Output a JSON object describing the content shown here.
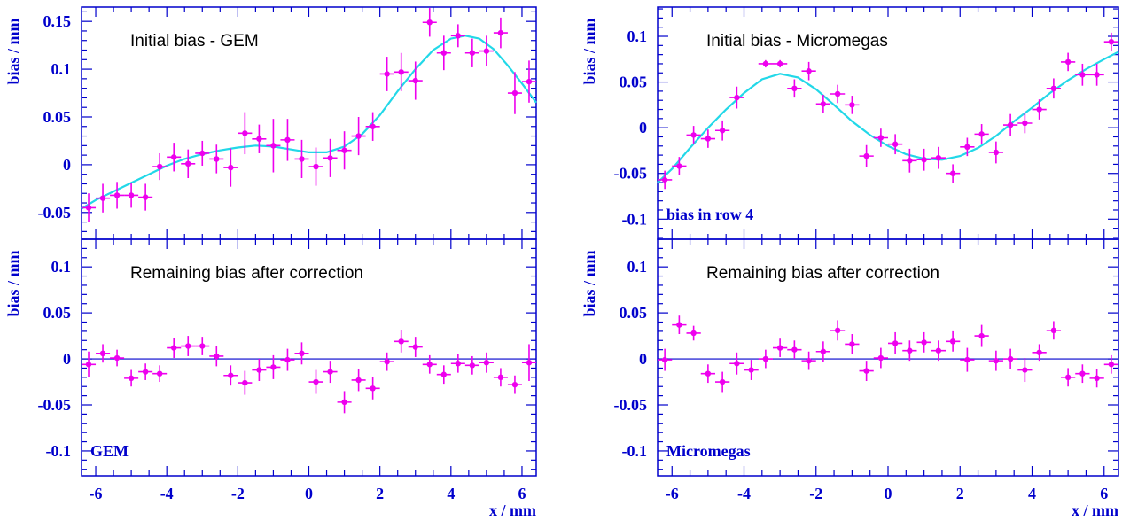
{
  "colors": {
    "axis": "#0000cc",
    "points": "#ee00ee",
    "fit": "#22d8e8",
    "note": "#000000"
  },
  "chart_data": [
    {
      "type": "scatter",
      "title": "Initial bias - GEM",
      "tag": "",
      "ylabel": "bias / mm",
      "xlabel": "",
      "xlim": [
        -6.4,
        6.4
      ],
      "ylim": [
        -0.078,
        0.165
      ],
      "yticks": [
        -0.05,
        0,
        0.05,
        0.1,
        0.15
      ],
      "ytick_labels": [
        "-0.05",
        "0",
        "0.05",
        "0.1",
        "0.15"
      ],
      "xticks": [],
      "xtick_labels": [],
      "zero_line": false,
      "points": [
        {
          "x": -6.2,
          "y": -0.045,
          "err": 0.015
        },
        {
          "x": -5.8,
          "y": -0.035,
          "err": 0.015
        },
        {
          "x": -5.4,
          "y": -0.032,
          "err": 0.014
        },
        {
          "x": -5.0,
          "y": -0.032,
          "err": 0.013
        },
        {
          "x": -4.6,
          "y": -0.034,
          "err": 0.014
        },
        {
          "x": -4.2,
          "y": -0.002,
          "err": 0.014
        },
        {
          "x": -3.8,
          "y": 0.008,
          "err": 0.015
        },
        {
          "x": -3.4,
          "y": 0.001,
          "err": 0.015
        },
        {
          "x": -3.0,
          "y": 0.012,
          "err": 0.013
        },
        {
          "x": -2.6,
          "y": 0.006,
          "err": 0.015
        },
        {
          "x": -2.2,
          "y": -0.003,
          "err": 0.02
        },
        {
          "x": -1.8,
          "y": 0.033,
          "err": 0.022
        },
        {
          "x": -1.4,
          "y": 0.027,
          "err": 0.015
        },
        {
          "x": -1.0,
          "y": 0.02,
          "err": 0.028
        },
        {
          "x": -0.6,
          "y": 0.026,
          "err": 0.022
        },
        {
          "x": -0.2,
          "y": 0.006,
          "err": 0.02
        },
        {
          "x": 0.2,
          "y": -0.002,
          "err": 0.02
        },
        {
          "x": 0.6,
          "y": 0.007,
          "err": 0.02
        },
        {
          "x": 1.0,
          "y": 0.015,
          "err": 0.02
        },
        {
          "x": 1.4,
          "y": 0.03,
          "err": 0.02
        },
        {
          "x": 1.8,
          "y": 0.04,
          "err": 0.015
        },
        {
          "x": 2.2,
          "y": 0.095,
          "err": 0.018
        },
        {
          "x": 2.6,
          "y": 0.097,
          "err": 0.02
        },
        {
          "x": 3.0,
          "y": 0.088,
          "err": 0.02
        },
        {
          "x": 3.4,
          "y": 0.149,
          "err": 0.015
        },
        {
          "x": 3.8,
          "y": 0.117,
          "err": 0.018
        },
        {
          "x": 4.2,
          "y": 0.135,
          "err": 0.012
        },
        {
          "x": 4.6,
          "y": 0.117,
          "err": 0.015
        },
        {
          "x": 5.0,
          "y": 0.119,
          "err": 0.016
        },
        {
          "x": 5.4,
          "y": 0.138,
          "err": 0.016
        },
        {
          "x": 5.8,
          "y": 0.075,
          "err": 0.022
        },
        {
          "x": 6.2,
          "y": 0.087,
          "err": 0.022
        }
      ],
      "fit": [
        [
          -6.4,
          -0.046
        ],
        [
          -6.0,
          -0.037
        ],
        [
          -5.5,
          -0.028
        ],
        [
          -5.0,
          -0.019
        ],
        [
          -4.5,
          -0.01
        ],
        [
          -4.0,
          -0.001
        ],
        [
          -3.5,
          0.006
        ],
        [
          -3.0,
          0.011
        ],
        [
          -2.5,
          0.015
        ],
        [
          -2.0,
          0.018
        ],
        [
          -1.5,
          0.02
        ],
        [
          -1.0,
          0.019
        ],
        [
          -0.5,
          0.016
        ],
        [
          0.0,
          0.013
        ],
        [
          0.5,
          0.013
        ],
        [
          1.0,
          0.019
        ],
        [
          1.5,
          0.032
        ],
        [
          2.0,
          0.052
        ],
        [
          2.5,
          0.077
        ],
        [
          3.0,
          0.1
        ],
        [
          3.5,
          0.12
        ],
        [
          4.0,
          0.132
        ],
        [
          4.4,
          0.135
        ],
        [
          4.8,
          0.132
        ],
        [
          5.2,
          0.121
        ],
        [
          5.6,
          0.104
        ],
        [
          6.0,
          0.085
        ],
        [
          6.4,
          0.065
        ]
      ]
    },
    {
      "type": "scatter",
      "title": "Remaining bias after correction",
      "tag": "GEM",
      "ylabel": "bias / mm",
      "xlabel": "x / mm",
      "xlim": [
        -6.4,
        6.4
      ],
      "ylim": [
        -0.127,
        0.13
      ],
      "yticks": [
        -0.1,
        -0.05,
        0,
        0.05,
        0.1
      ],
      "ytick_labels": [
        "-0.1",
        "-0.05",
        "0",
        "0.05",
        "0.1"
      ],
      "xticks": [
        -6,
        -4,
        -2,
        0,
        2,
        4,
        6
      ],
      "xtick_labels": [
        "-6",
        "-4",
        "-2",
        "0",
        "2",
        "4",
        "6"
      ],
      "zero_line": true,
      "points": [
        {
          "x": -6.2,
          "y": -0.006,
          "err": 0.014
        },
        {
          "x": -5.8,
          "y": 0.006,
          "err": 0.01
        },
        {
          "x": -5.4,
          "y": 0.001,
          "err": 0.009
        },
        {
          "x": -5.0,
          "y": -0.021,
          "err": 0.009
        },
        {
          "x": -4.6,
          "y": -0.014,
          "err": 0.009
        },
        {
          "x": -4.2,
          "y": -0.016,
          "err": 0.009
        },
        {
          "x": -3.8,
          "y": 0.012,
          "err": 0.011
        },
        {
          "x": -3.4,
          "y": 0.014,
          "err": 0.011
        },
        {
          "x": -3.0,
          "y": 0.014,
          "err": 0.01
        },
        {
          "x": -2.6,
          "y": 0.003,
          "err": 0.011
        },
        {
          "x": -2.2,
          "y": -0.018,
          "err": 0.011
        },
        {
          "x": -1.8,
          "y": -0.026,
          "err": 0.013
        },
        {
          "x": -1.4,
          "y": -0.012,
          "err": 0.012
        },
        {
          "x": -1.0,
          "y": -0.009,
          "err": 0.013
        },
        {
          "x": -0.6,
          "y": -0.001,
          "err": 0.012
        },
        {
          "x": -0.2,
          "y": 0.006,
          "err": 0.012
        },
        {
          "x": 0.2,
          "y": -0.025,
          "err": 0.013
        },
        {
          "x": 0.6,
          "y": -0.014,
          "err": 0.012
        },
        {
          "x": 1.0,
          "y": -0.047,
          "err": 0.012
        },
        {
          "x": 1.4,
          "y": -0.023,
          "err": 0.012
        },
        {
          "x": 1.8,
          "y": -0.032,
          "err": 0.012
        },
        {
          "x": 2.2,
          "y": -0.003,
          "err": 0.01
        },
        {
          "x": 2.6,
          "y": 0.019,
          "err": 0.012
        },
        {
          "x": 3.0,
          "y": 0.013,
          "err": 0.011
        },
        {
          "x": 3.4,
          "y": -0.006,
          "err": 0.01
        },
        {
          "x": 3.8,
          "y": -0.017,
          "err": 0.01
        },
        {
          "x": 4.2,
          "y": -0.005,
          "err": 0.01
        },
        {
          "x": 4.6,
          "y": -0.007,
          "err": 0.01
        },
        {
          "x": 5.0,
          "y": -0.004,
          "err": 0.011
        },
        {
          "x": 5.4,
          "y": -0.02,
          "err": 0.01
        },
        {
          "x": 5.8,
          "y": -0.028,
          "err": 0.01
        },
        {
          "x": 6.2,
          "y": -0.004,
          "err": 0.02
        }
      ],
      "fit": []
    },
    {
      "type": "scatter",
      "title": "Initial bias - Micromegas",
      "tag": "bias in row 4",
      "ylabel": "bias / mm",
      "xlabel": "",
      "xlim": [
        -6.4,
        6.4
      ],
      "ylim": [
        -0.122,
        0.132
      ],
      "yticks": [
        -0.1,
        -0.05,
        0,
        0.05,
        0.1
      ],
      "ytick_labels": [
        "-0.1",
        "-0.05",
        "0",
        "0.05",
        "0.1"
      ],
      "xticks": [],
      "xtick_labels": [],
      "zero_line": false,
      "points": [
        {
          "x": -6.2,
          "y": -0.057,
          "err": 0.01
        },
        {
          "x": -5.8,
          "y": -0.042,
          "err": 0.01
        },
        {
          "x": -5.4,
          "y": -0.008,
          "err": 0.01
        },
        {
          "x": -5.0,
          "y": -0.012,
          "err": 0.01
        },
        {
          "x": -4.6,
          "y": -0.003,
          "err": 0.011
        },
        {
          "x": -4.2,
          "y": 0.033,
          "err": 0.012
        },
        {
          "x": -3.4,
          "y": 0.07,
          "err": 0.004
        },
        {
          "x": -3.0,
          "y": 0.07,
          "err": 0.004
        },
        {
          "x": -2.6,
          "y": 0.043,
          "err": 0.01
        },
        {
          "x": -2.2,
          "y": 0.062,
          "err": 0.01
        },
        {
          "x": -1.8,
          "y": 0.026,
          "err": 0.01
        },
        {
          "x": -1.4,
          "y": 0.037,
          "err": 0.01
        },
        {
          "x": -1.0,
          "y": 0.025,
          "err": 0.01
        },
        {
          "x": -0.6,
          "y": -0.031,
          "err": 0.012
        },
        {
          "x": -0.2,
          "y": -0.011,
          "err": 0.01
        },
        {
          "x": 0.2,
          "y": -0.018,
          "err": 0.011
        },
        {
          "x": 0.6,
          "y": -0.036,
          "err": 0.013
        },
        {
          "x": 1.0,
          "y": -0.035,
          "err": 0.012
        },
        {
          "x": 1.4,
          "y": -0.033,
          "err": 0.012
        },
        {
          "x": 1.8,
          "y": -0.05,
          "err": 0.01
        },
        {
          "x": 2.2,
          "y": -0.021,
          "err": 0.01
        },
        {
          "x": 2.6,
          "y": -0.007,
          "err": 0.011
        },
        {
          "x": 3.0,
          "y": -0.027,
          "err": 0.012
        },
        {
          "x": 3.4,
          "y": 0.003,
          "err": 0.012
        },
        {
          "x": 3.8,
          "y": 0.005,
          "err": 0.011
        },
        {
          "x": 4.2,
          "y": 0.02,
          "err": 0.011
        },
        {
          "x": 4.6,
          "y": 0.043,
          "err": 0.011
        },
        {
          "x": 5.0,
          "y": 0.072,
          "err": 0.01
        },
        {
          "x": 5.4,
          "y": 0.058,
          "err": 0.012
        },
        {
          "x": 5.8,
          "y": 0.058,
          "err": 0.012
        },
        {
          "x": 6.2,
          "y": 0.094,
          "err": 0.01
        }
      ],
      "fit": [
        [
          -6.4,
          -0.06
        ],
        [
          -6.0,
          -0.045
        ],
        [
          -5.5,
          -0.022
        ],
        [
          -5.0,
          0.0
        ],
        [
          -4.5,
          0.02
        ],
        [
          -4.0,
          0.038
        ],
        [
          -3.5,
          0.053
        ],
        [
          -3.0,
          0.059
        ],
        [
          -2.5,
          0.055
        ],
        [
          -2.0,
          0.042
        ],
        [
          -1.5,
          0.025
        ],
        [
          -1.0,
          0.007
        ],
        [
          -0.5,
          -0.008
        ],
        [
          0.0,
          -0.02
        ],
        [
          0.5,
          -0.029
        ],
        [
          1.0,
          -0.034
        ],
        [
          1.5,
          -0.035
        ],
        [
          2.0,
          -0.031
        ],
        [
          2.5,
          -0.022
        ],
        [
          3.0,
          -0.009
        ],
        [
          3.5,
          0.007
        ],
        [
          4.0,
          0.022
        ],
        [
          4.5,
          0.038
        ],
        [
          5.0,
          0.052
        ],
        [
          5.5,
          0.064
        ],
        [
          6.0,
          0.075
        ],
        [
          6.4,
          0.083
        ]
      ]
    },
    {
      "type": "scatter",
      "title": "Remaining bias after correction",
      "tag": "Micromegas",
      "ylabel": "bias / mm",
      "xlabel": "x / mm",
      "xlim": [
        -6.4,
        6.4
      ],
      "ylim": [
        -0.127,
        0.13
      ],
      "yticks": [
        -0.1,
        -0.05,
        0,
        0.05,
        0.1
      ],
      "ytick_labels": [
        "-0.1",
        "-0.05",
        "0",
        "0.05",
        "0.1"
      ],
      "xticks": [
        -6,
        -4,
        -2,
        0,
        2,
        4,
        6
      ],
      "xtick_labels": [
        "-6",
        "-4",
        "-2",
        "0",
        "2",
        "4",
        "6"
      ],
      "zero_line": true,
      "points": [
        {
          "x": -6.2,
          "y": -0.001,
          "err": 0.012
        },
        {
          "x": -5.8,
          "y": 0.037,
          "err": 0.01
        },
        {
          "x": -5.4,
          "y": 0.028,
          "err": 0.008
        },
        {
          "x": -5.0,
          "y": -0.016,
          "err": 0.01
        },
        {
          "x": -4.6,
          "y": -0.025,
          "err": 0.011
        },
        {
          "x": -4.2,
          "y": -0.005,
          "err": 0.012
        },
        {
          "x": -3.8,
          "y": -0.012,
          "err": 0.011
        },
        {
          "x": -3.4,
          "y": 0.0,
          "err": 0.01
        },
        {
          "x": -3.0,
          "y": 0.012,
          "err": 0.01
        },
        {
          "x": -2.6,
          "y": 0.01,
          "err": 0.01
        },
        {
          "x": -2.2,
          "y": -0.002,
          "err": 0.01
        },
        {
          "x": -1.8,
          "y": 0.008,
          "err": 0.011
        },
        {
          "x": -1.4,
          "y": 0.031,
          "err": 0.011
        },
        {
          "x": -1.0,
          "y": 0.016,
          "err": 0.011
        },
        {
          "x": -0.6,
          "y": -0.013,
          "err": 0.011
        },
        {
          "x": -0.2,
          "y": 0.001,
          "err": 0.011
        },
        {
          "x": 0.2,
          "y": 0.017,
          "err": 0.012
        },
        {
          "x": 0.6,
          "y": 0.009,
          "err": 0.011
        },
        {
          "x": 1.0,
          "y": 0.018,
          "err": 0.011
        },
        {
          "x": 1.4,
          "y": 0.009,
          "err": 0.011
        },
        {
          "x": 1.8,
          "y": 0.019,
          "err": 0.011
        },
        {
          "x": 2.2,
          "y": -0.001,
          "err": 0.013
        },
        {
          "x": 2.6,
          "y": 0.025,
          "err": 0.012
        },
        {
          "x": 3.0,
          "y": -0.002,
          "err": 0.011
        },
        {
          "x": 3.4,
          "y": 0.0,
          "err": 0.011
        },
        {
          "x": 3.8,
          "y": -0.012,
          "err": 0.013
        },
        {
          "x": 4.2,
          "y": 0.007,
          "err": 0.009
        },
        {
          "x": 4.6,
          "y": 0.031,
          "err": 0.01
        },
        {
          "x": 5.0,
          "y": -0.02,
          "err": 0.01
        },
        {
          "x": 5.4,
          "y": -0.016,
          "err": 0.01
        },
        {
          "x": 5.8,
          "y": -0.021,
          "err": 0.01
        },
        {
          "x": 6.2,
          "y": -0.006,
          "err": 0.01
        }
      ],
      "fit": []
    }
  ]
}
